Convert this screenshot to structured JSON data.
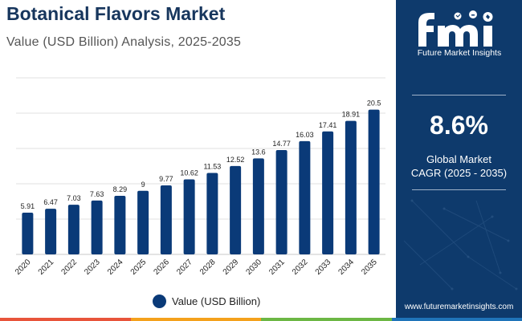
{
  "header": {
    "title": "Botanical Flavors Market",
    "subtitle": "Value (USD Billion) Analysis, 2025-2035"
  },
  "chart_data": {
    "type": "bar",
    "title": "Botanical Flavors Market",
    "subtitle": "Value (USD Billion) Analysis, 2025-2035",
    "categories": [
      "2020",
      "2021",
      "2022",
      "2023",
      "2024",
      "2025",
      "2026",
      "2027",
      "2028",
      "2029",
      "2030",
      "2031",
      "2032",
      "2033",
      "2034",
      "2035"
    ],
    "series": [
      {
        "name": "Value (USD Billion)",
        "values": [
          5.91,
          6.47,
          7.03,
          7.63,
          8.29,
          9,
          9.77,
          10.62,
          11.53,
          12.52,
          13.6,
          14.77,
          16.03,
          17.41,
          18.91,
          20.5
        ],
        "labels": [
          "5.91",
          "6.47",
          "7.03",
          "7.63",
          "8.29",
          "9",
          "9.77",
          "10.62",
          "11.53",
          "12.52",
          "13.6",
          "14.77",
          "16.03",
          "17.41",
          "18.91",
          "20.5"
        ]
      }
    ],
    "xlabel": "",
    "ylabel": "",
    "ylim": [
      0,
      25
    ],
    "gridlines": true,
    "legend_position": "bottom-center",
    "colors": {
      "bar": "#0a3a78",
      "grid": "#e2e2e2"
    }
  },
  "legend": {
    "label": "Value (USD Billion)"
  },
  "sidebar": {
    "logo_letters": "fmi",
    "logo_text": "Future Market Insights",
    "cagr_value": "8.6%",
    "cagr_label_line1": "Global Market",
    "cagr_label_line2": "CAGR (2025 - 2035)",
    "website": "www.futuremarketinsights.com",
    "background": "#0e3a6c"
  },
  "footer": {
    "stripe_colors": [
      "#e8543a",
      "#f4a11c",
      "#6cb744",
      "#1f74b9"
    ]
  }
}
